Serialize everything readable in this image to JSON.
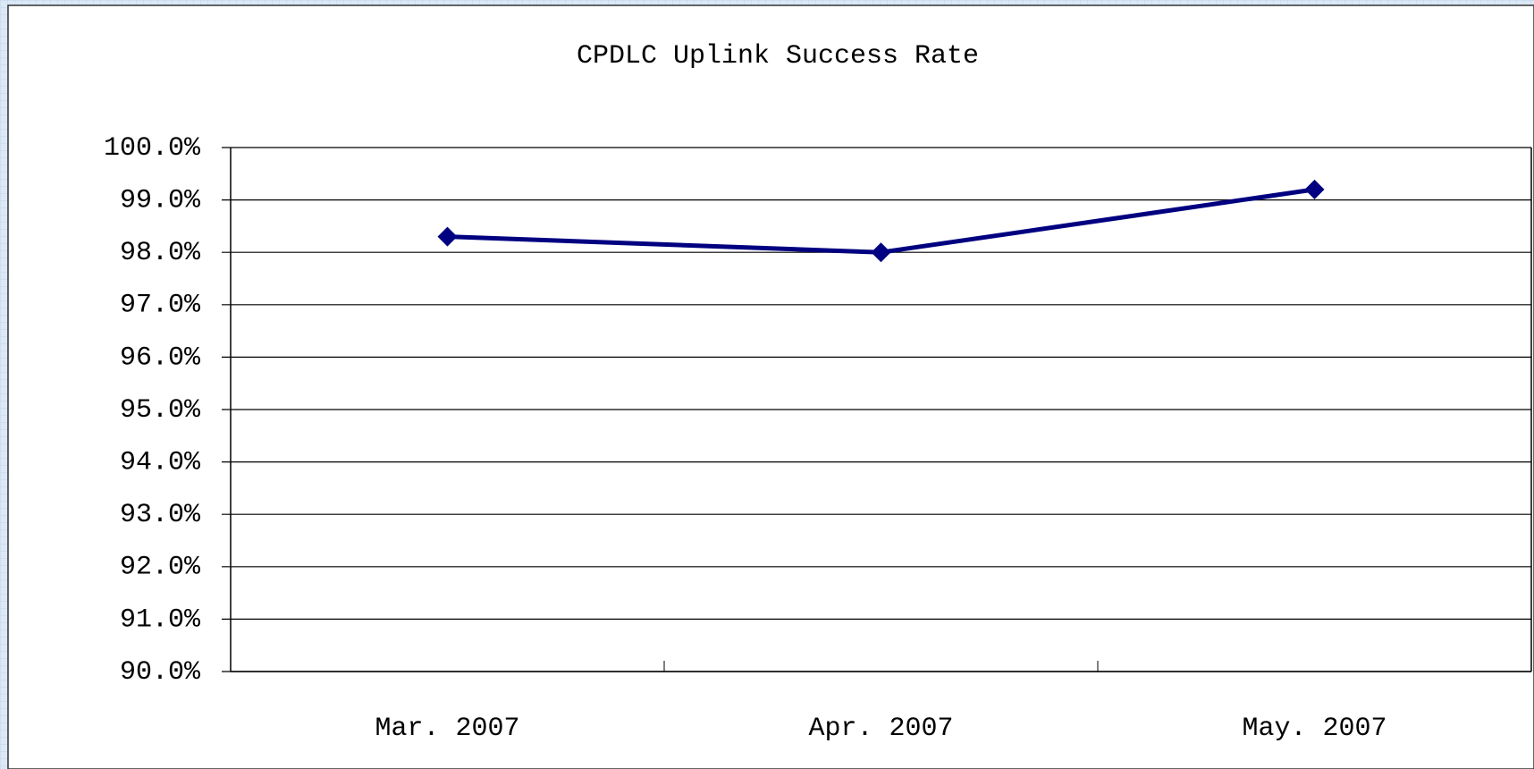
{
  "chart_data": {
    "type": "line",
    "title": "CPDLC Uplink Success Rate",
    "categories": [
      "Mar. 2007",
      "Apr. 2007",
      "May. 2007"
    ],
    "series": [
      {
        "name": "CPDLC Uplink Success Rate",
        "color": "#000080",
        "values": [
          98.3,
          98.0,
          99.2
        ]
      }
    ],
    "ylim": [
      90,
      100
    ],
    "yticks": [
      {
        "value": 90,
        "label": "90.0%"
      },
      {
        "value": 91,
        "label": "91.0%"
      },
      {
        "value": 92,
        "label": "92.0%"
      },
      {
        "value": 93,
        "label": "93.0%"
      },
      {
        "value": 94,
        "label": "94.0%"
      },
      {
        "value": 95,
        "label": "95.0%"
      },
      {
        "value": 96,
        "label": "96.0%"
      },
      {
        "value": 97,
        "label": "97.0%"
      },
      {
        "value": 98,
        "label": "98.0%"
      },
      {
        "value": 99,
        "label": "99.0%"
      },
      {
        "value": 100,
        "label": "100.0%"
      }
    ],
    "grid": true
  }
}
